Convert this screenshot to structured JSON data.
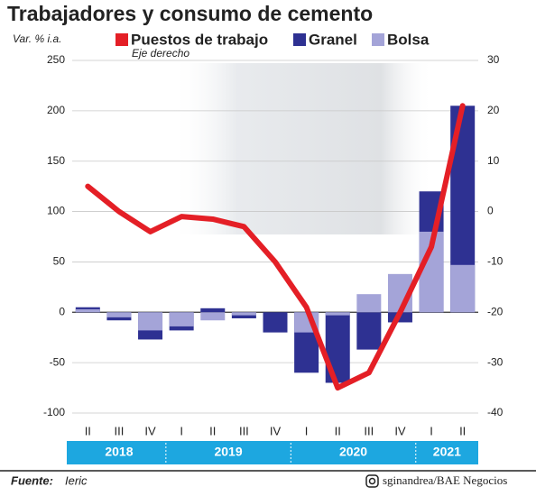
{
  "chart_data": {
    "type": "bar-line",
    "title": "Trabajadores y consumo de cemento",
    "y_axis_label": "Var. % i.a.",
    "y2_axis_label": "Eje derecho",
    "categories": [
      "II",
      "III",
      "IV",
      "I",
      "II",
      "III",
      "IV",
      "I",
      "II",
      "III",
      "IV",
      "I",
      "II"
    ],
    "year_groups": [
      {
        "label": "2018",
        "span": 3
      },
      {
        "label": "2019",
        "span": 4
      },
      {
        "label": "2020",
        "span": 4
      },
      {
        "label": "2021",
        "span": 2
      }
    ],
    "series": [
      {
        "name": "Puestos de trabajo",
        "color": "#e41f26",
        "type": "line",
        "axis": "y2",
        "values": [
          5,
          0,
          -4,
          -1,
          -1.5,
          -3,
          -10,
          -19,
          -35,
          -32,
          -20,
          -7,
          21
        ]
      },
      {
        "name": "Granel",
        "color": "#2e3192",
        "type": "bar",
        "values": [
          5,
          -8,
          -27,
          -18,
          4,
          -6,
          -20,
          -60,
          -70,
          -37,
          -10,
          120,
          205
        ]
      },
      {
        "name": "Bolsa",
        "color": "#a4a4d8",
        "type": "bar",
        "values": [
          3,
          -5,
          -18,
          -14,
          -8,
          -3,
          0,
          -20,
          -3,
          18,
          38,
          80,
          47
        ]
      }
    ],
    "ylim": [
      -100,
      250
    ],
    "yticks": [
      -100,
      -50,
      0,
      50,
      100,
      150,
      200,
      250
    ],
    "y2lim": [
      -40,
      30
    ],
    "y2ticks": [
      -40,
      -30,
      -20,
      -10,
      0,
      10,
      20,
      30
    ],
    "grid": true,
    "source_label": "Fuente:",
    "source": "Ieric",
    "credit": "sginandrea/BAE Negocios"
  }
}
